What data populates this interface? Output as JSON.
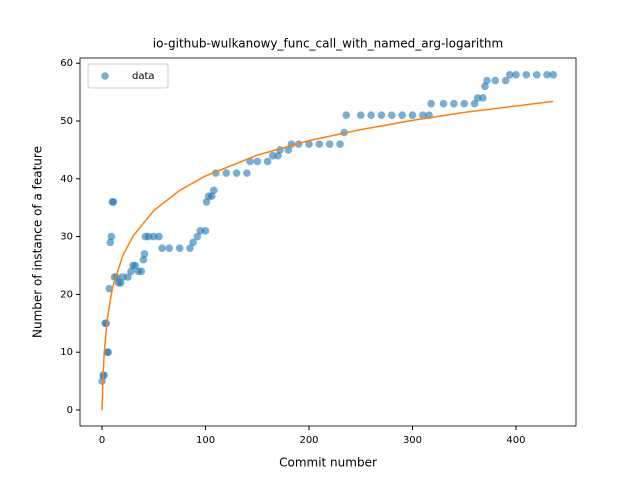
{
  "chart_data": {
    "type": "scatter",
    "title": "io-github-wulkanowy_func_call_with_named_arg-logarithm",
    "xlabel": "Commit number",
    "ylabel": "Number of instance of a feature",
    "xlim": [
      -21.3,
      458
    ],
    "ylim": [
      -2.77,
      60.9
    ],
    "xticks": [
      0,
      100,
      200,
      300,
      400
    ],
    "yticks": [
      0,
      10,
      20,
      30,
      40,
      50,
      60
    ],
    "legend": "upper left",
    "series": [
      {
        "name": "data",
        "type": "scatter",
        "color": "#1f77b4",
        "x": [
          0,
          1,
          2,
          3,
          4,
          5,
          6,
          7,
          8,
          9,
          10,
          11,
          12,
          14,
          16,
          18,
          20,
          25,
          28,
          30,
          32,
          35,
          38,
          40,
          41,
          42,
          45,
          50,
          55,
          58,
          65,
          75,
          85,
          88,
          92,
          95,
          100,
          101,
          103,
          106,
          108,
          110,
          120,
          130,
          140,
          143,
          150,
          160,
          165,
          170,
          172,
          180,
          183,
          190,
          200,
          210,
          220,
          230,
          234,
          236,
          250,
          260,
          270,
          280,
          290,
          300,
          310,
          316,
          318,
          330,
          340,
          350,
          360,
          363,
          368,
          370,
          372,
          380,
          390,
          394,
          400,
          410,
          420,
          430,
          436
        ],
        "values": [
          5,
          6,
          6,
          15,
          15,
          10,
          10,
          21,
          29,
          30,
          36,
          36,
          23,
          23,
          22,
          22,
          23,
          23,
          24,
          25,
          25,
          24,
          24,
          26,
          27,
          30,
          30,
          30,
          30,
          28,
          28,
          28,
          28,
          29,
          30,
          31,
          31,
          36,
          37,
          37,
          38,
          41,
          41,
          41,
          41,
          43,
          43,
          43,
          44,
          44,
          45,
          45,
          46,
          46,
          46,
          46,
          46,
          46,
          48,
          51,
          51,
          51,
          51,
          51,
          51,
          51,
          51,
          51,
          53,
          53,
          53,
          53,
          53,
          54,
          54,
          56,
          57,
          57,
          57,
          58,
          58,
          58,
          58,
          58,
          58
        ]
      },
      {
        "type": "line",
        "color": "#ff7f0e",
        "x": [
          0,
          1,
          2,
          5,
          10,
          20,
          30,
          50,
          75,
          100,
          150,
          200,
          250,
          300,
          350,
          400,
          436
        ],
        "values": [
          0,
          6.1,
          9.6,
          15.7,
          21.1,
          26.7,
          30.1,
          34.5,
          38.0,
          40.5,
          44.1,
          46.6,
          48.5,
          50.1,
          51.5,
          52.6,
          53.4
        ]
      }
    ]
  }
}
